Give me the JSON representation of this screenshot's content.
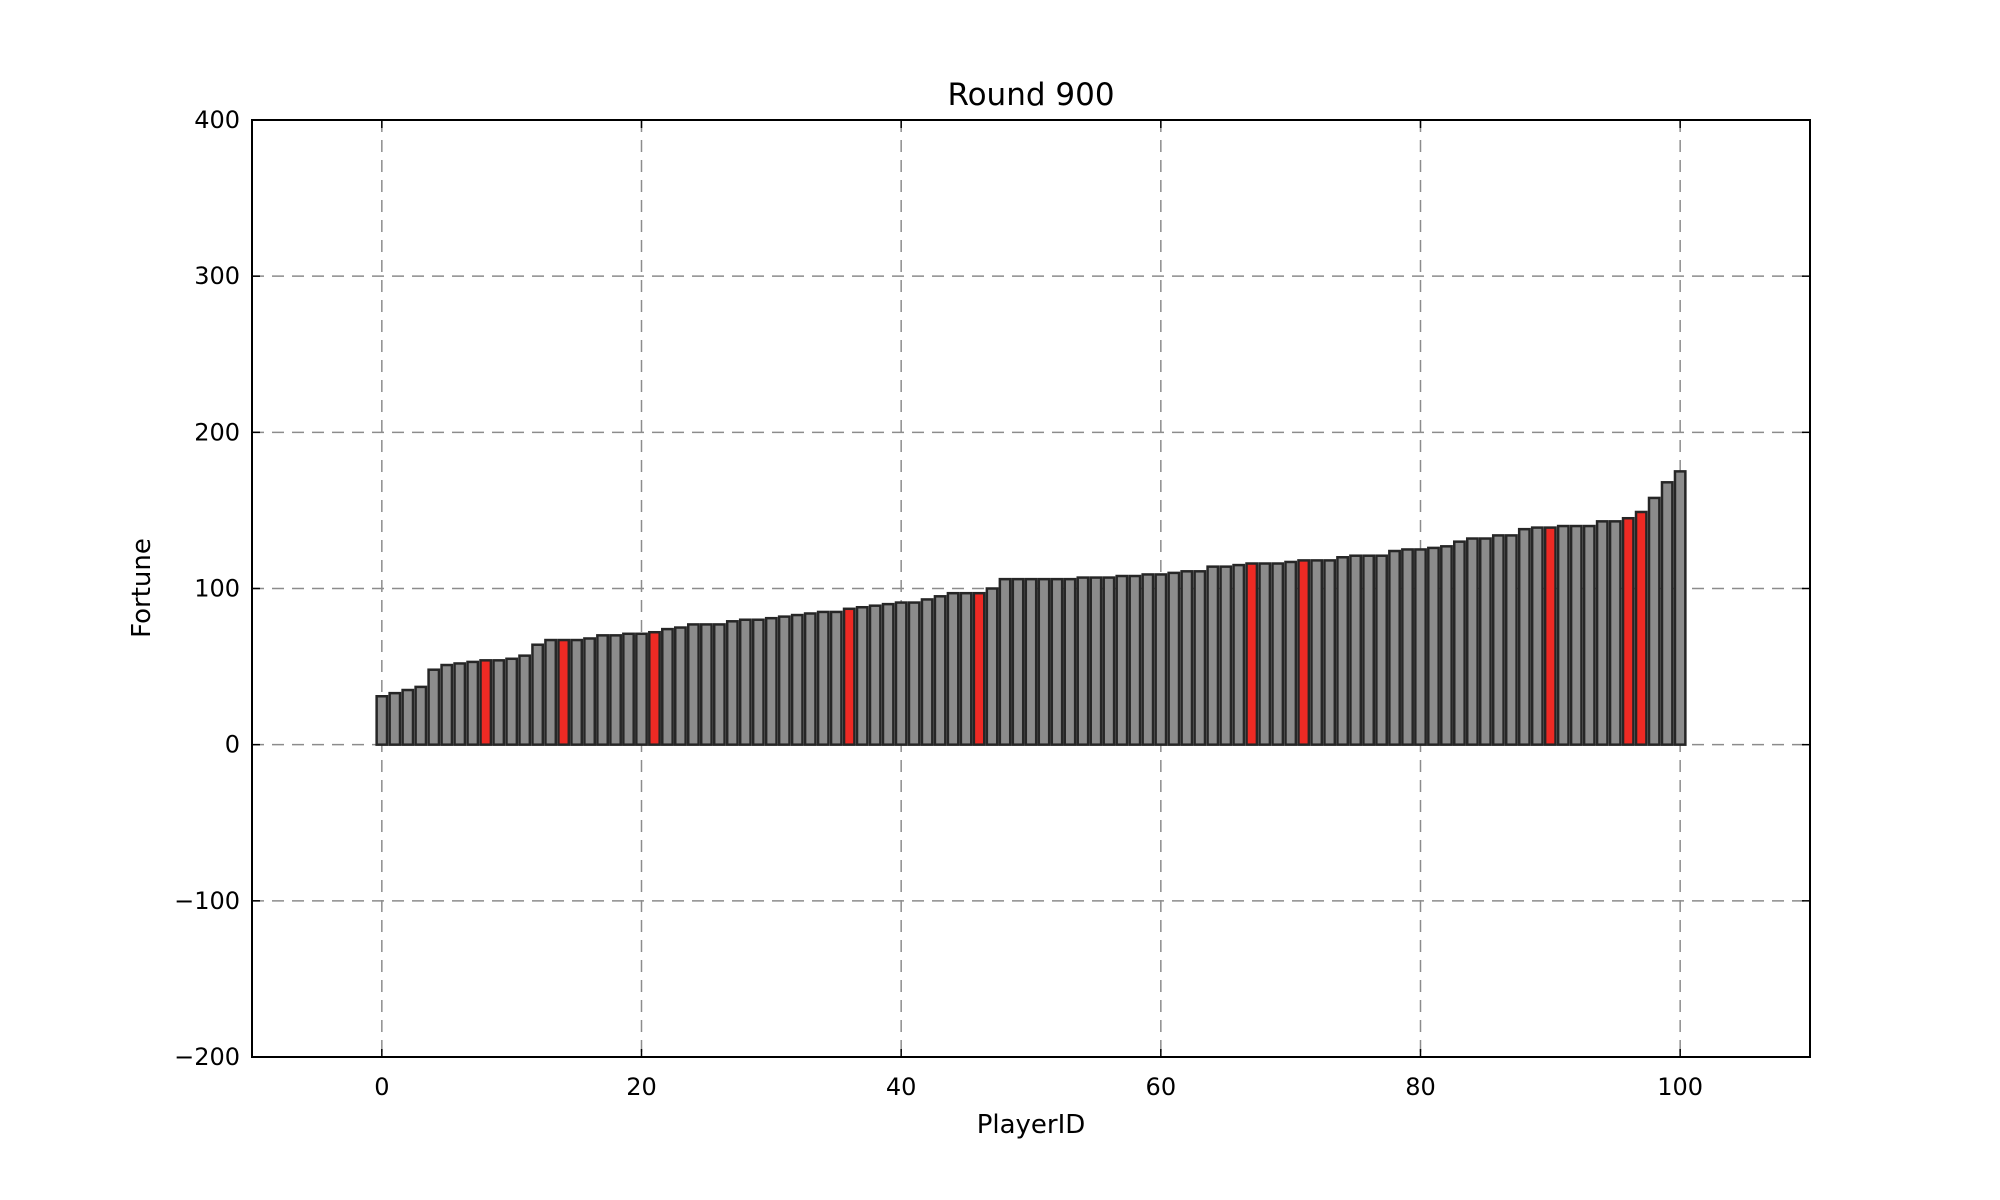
{
  "chart_data": {
    "type": "bar",
    "title": "Round 900",
    "xlabel": "PlayerID",
    "ylabel": "Fortune",
    "xlim": [
      -10,
      110
    ],
    "ylim": [
      -200,
      400
    ],
    "xticks": [
      0,
      20,
      40,
      60,
      80,
      100
    ],
    "yticks": [
      -200,
      -100,
      0,
      100,
      200,
      300,
      400
    ],
    "x_tick_labels": [
      "0",
      "20",
      "40",
      "60",
      "80",
      "100"
    ],
    "y_tick_labels": [
      "−200",
      "−100",
      "0",
      "100",
      "200",
      "300",
      "400"
    ],
    "grid": true,
    "bar_width": 0.8,
    "colors": {
      "default": "#8c8c8c",
      "highlight": "#ee2a24",
      "edge": "#262626",
      "grid": "#8c8c8c"
    },
    "values": [
      31,
      33,
      35,
      37,
      48,
      51,
      52,
      53,
      54,
      54,
      55,
      57,
      64,
      67,
      67,
      67,
      68,
      70,
      70,
      71,
      71,
      72,
      74,
      75,
      77,
      77,
      77,
      79,
      80,
      80,
      81,
      82,
      83,
      84,
      85,
      85,
      87,
      88,
      89,
      90,
      91,
      91,
      93,
      95,
      97,
      97,
      97,
      100,
      106,
      106,
      106,
      106,
      106,
      106,
      107,
      107,
      107,
      108,
      108,
      109,
      109,
      110,
      111,
      111,
      114,
      114,
      115,
      116,
      116,
      116,
      117,
      118,
      118,
      118,
      120,
      121,
      121,
      121,
      124,
      125,
      125,
      126,
      127,
      130,
      132,
      132,
      134,
      134,
      138,
      139,
      139,
      140,
      140,
      140,
      143,
      143,
      145,
      149,
      158,
      168,
      175
    ],
    "highlighted": [
      8,
      14,
      21,
      36,
      46,
      67,
      71,
      90,
      96,
      97
    ]
  }
}
